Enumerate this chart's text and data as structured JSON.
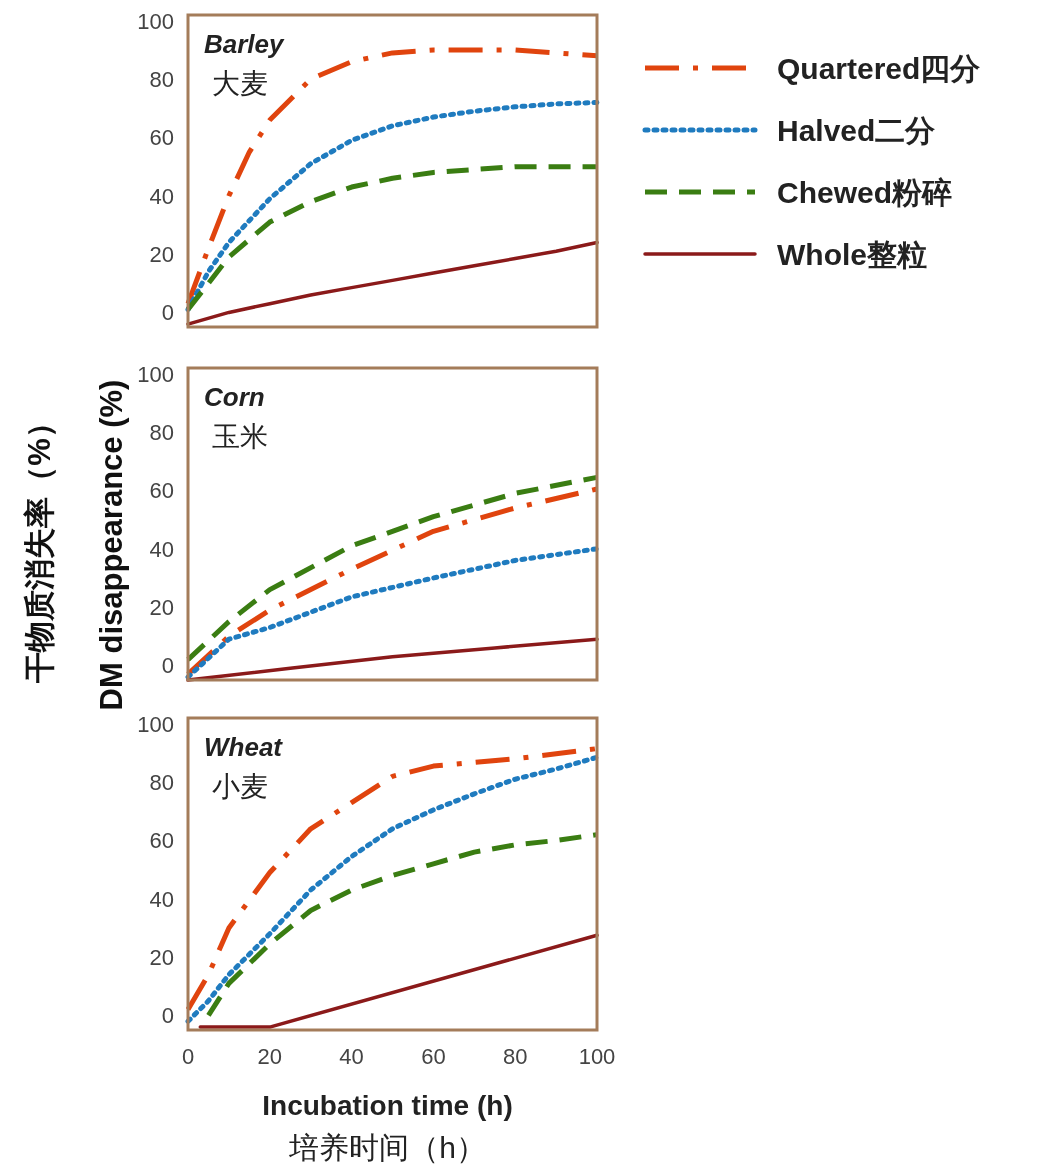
{
  "chart_data": [
    {
      "type": "line",
      "title": "Barley\n大麦",
      "ylabel": "干物质消失率（%）\nDM disappearance (%)",
      "xlim": [
        0,
        100
      ],
      "ylim": [
        -5,
        102
      ],
      "yticks": [
        0,
        20,
        40,
        60,
        80,
        100
      ],
      "tick_labels": "y",
      "legend": "right",
      "marker": "none",
      "series": [
        {
          "name": "Quartered四分",
          "color": "#e0440e",
          "line_style": "dashdot",
          "x": [
            0,
            5,
            10,
            15,
            20,
            30,
            40,
            50,
            60,
            70,
            80,
            90,
            100
          ],
          "values": [
            3,
            22,
            40,
            55,
            66,
            80,
            86,
            89,
            90,
            90,
            90,
            89,
            88
          ]
        },
        {
          "name": "Halved二分",
          "color": "#1f7bbf",
          "line_style": "dotted",
          "x": [
            0,
            5,
            10,
            20,
            30,
            40,
            50,
            60,
            70,
            80,
            90,
            100
          ],
          "values": [
            1,
            14,
            24,
            39,
            51,
            59,
            64,
            67,
            69,
            70.5,
            71.5,
            72
          ]
        },
        {
          "name": "Chewed粉碎",
          "color": "#3a7d12",
          "line_style": "dashed",
          "x": [
            0,
            5,
            10,
            20,
            30,
            40,
            50,
            60,
            70,
            80,
            90,
            100
          ],
          "values": [
            1,
            10,
            19,
            31,
            38,
            43,
            46,
            48,
            49,
            50,
            50,
            50
          ]
        },
        {
          "name": "Whole整粒",
          "color": "#8b1a1a",
          "line_style": "solid",
          "x": [
            0,
            10,
            20,
            30,
            40,
            50,
            60,
            70,
            80,
            90,
            100
          ],
          "values": [
            -4,
            0,
            3,
            6,
            8.5,
            11,
            13.5,
            16,
            18.5,
            21,
            24
          ]
        }
      ]
    },
    {
      "type": "line",
      "title": "Corn\n玉米",
      "xlim": [
        0,
        100
      ],
      "ylim": [
        -5,
        102
      ],
      "yticks": [
        0,
        20,
        40,
        60,
        80,
        100
      ],
      "tick_labels": "y",
      "marker": "none",
      "series": [
        {
          "color": "#e0440e",
          "line_style": "dashdot",
          "x": [
            0,
            10,
            20,
            40,
            60,
            80,
            100
          ],
          "values": [
            -3,
            10,
            19,
            33,
            46,
            54,
            60.5
          ]
        },
        {
          "color": "#1f7bbf",
          "line_style": "dotted",
          "x": [
            0,
            10,
            20,
            40,
            60,
            80,
            100
          ],
          "values": [
            -4,
            9,
            13,
            23.5,
            30,
            36,
            40
          ]
        },
        {
          "color": "#3a7d12",
          "line_style": "dashed",
          "x": [
            0,
            10,
            20,
            40,
            60,
            80,
            100
          ],
          "values": [
            2,
            15,
            26,
            41,
            51,
            59,
            64.5
          ]
        },
        {
          "color": "#8b1a1a",
          "line_style": "solid",
          "x": [
            0,
            25,
            50,
            75,
            100
          ],
          "values": [
            -5,
            -1,
            3,
            6,
            9
          ]
        }
      ]
    },
    {
      "type": "line",
      "title": "Wheat\n小麦",
      "xlabel": "Incubation time (h)\n培养时间（h）",
      "xlim": [
        0,
        100
      ],
      "ylim": [
        -5,
        102
      ],
      "xticks": [
        0,
        20,
        40,
        60,
        80,
        100
      ],
      "yticks": [
        0,
        20,
        40,
        60,
        80,
        100
      ],
      "marker": "none",
      "series": [
        {
          "color": "#e0440e",
          "line_style": "dashdot",
          "x": [
            0,
            5,
            10,
            20,
            30,
            40,
            50,
            60,
            80,
            100
          ],
          "values": [
            2,
            14,
            30,
            49,
            64,
            73,
            82,
            85.5,
            88,
            91.5
          ]
        },
        {
          "color": "#1f7bbf",
          "line_style": "dotted",
          "x": [
            0,
            5,
            10,
            20,
            30,
            40,
            50,
            60,
            70,
            80,
            90,
            100
          ],
          "values": [
            -2,
            5,
            14,
            28,
            43,
            54.5,
            64,
            70.5,
            76,
            81,
            84.5,
            88.5
          ]
        },
        {
          "color": "#3a7d12",
          "line_style": "dashed",
          "x": [
            5,
            10,
            20,
            30,
            40,
            50,
            60,
            70,
            80,
            90,
            100
          ],
          "values": [
            0,
            11,
            24.5,
            36,
            43,
            48,
            52,
            56,
            58.5,
            60,
            62
          ]
        },
        {
          "color": "#8b1a1a",
          "line_style": "solid",
          "x": [
            3,
            20,
            100
          ],
          "values": [
            -4,
            -4,
            27.5
          ]
        }
      ]
    }
  ]
}
